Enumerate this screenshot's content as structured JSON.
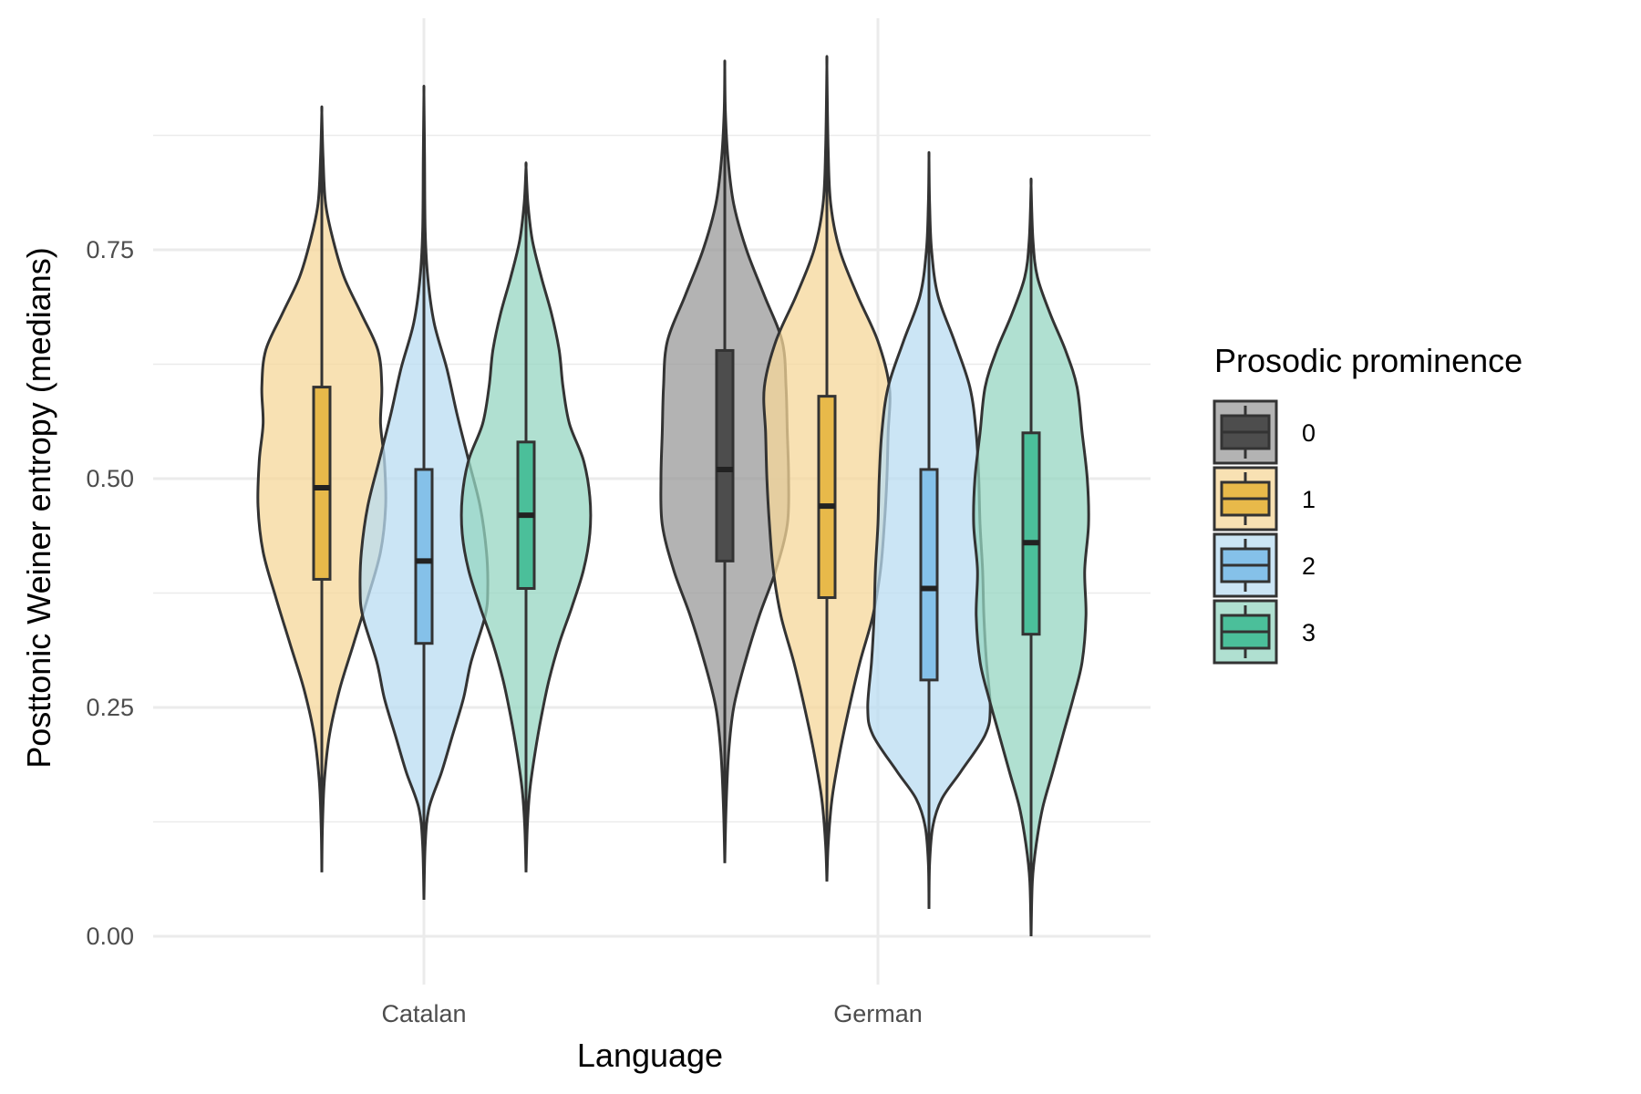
{
  "chart_data": {
    "type": "violin",
    "xlabel": "Language",
    "ylabel": "Posttonic Weiner entropy (medians)",
    "ylim": [
      -0.05,
      1.0
    ],
    "yticks": [
      "0.00",
      "0.25",
      "0.50",
      "0.75"
    ],
    "ytick_values": [
      0,
      0.25,
      0.5,
      0.75
    ],
    "categories": [
      "Catalan",
      "German"
    ],
    "grid": true,
    "legend": {
      "title": "Prosodic prominence",
      "position": "right",
      "entries": [
        {
          "label": "0",
          "fill": "#999999",
          "box": "#4d4d4d"
        },
        {
          "label": "1",
          "fill": "#f5d79a",
          "box": "#e8b94a"
        },
        {
          "label": "2",
          "fill": "#b9dcf2",
          "box": "#85c1e9"
        },
        {
          "label": "3",
          "fill": "#96d6c2",
          "box": "#4bbf9a"
        }
      ]
    },
    "groups": [
      {
        "category": "Catalan",
        "level": "1",
        "min": 0.07,
        "max": 0.9,
        "q1": 0.39,
        "median": 0.49,
        "q3": 0.6,
        "whisker_low": 0.18,
        "whisker_high": 0.79,
        "density": [
          [
            0.07,
            0.0
          ],
          [
            0.12,
            0.01
          ],
          [
            0.17,
            0.04
          ],
          [
            0.22,
            0.12
          ],
          [
            0.27,
            0.28
          ],
          [
            0.32,
            0.5
          ],
          [
            0.37,
            0.72
          ],
          [
            0.42,
            0.92
          ],
          [
            0.47,
            1.0
          ],
          [
            0.52,
            0.98
          ],
          [
            0.56,
            0.92
          ],
          [
            0.6,
            0.94
          ],
          [
            0.64,
            0.88
          ],
          [
            0.68,
            0.62
          ],
          [
            0.72,
            0.35
          ],
          [
            0.76,
            0.18
          ],
          [
            0.8,
            0.06
          ],
          [
            0.85,
            0.02
          ],
          [
            0.9,
            0.0
          ]
        ]
      },
      {
        "category": "Catalan",
        "level": "2",
        "min": 0.04,
        "max": 0.92,
        "q1": 0.32,
        "median": 0.41,
        "q3": 0.51,
        "whisker_low": 0.04,
        "whisker_high": 0.76,
        "density": [
          [
            0.04,
            0.0
          ],
          [
            0.1,
            0.02
          ],
          [
            0.14,
            0.08
          ],
          [
            0.18,
            0.28
          ],
          [
            0.22,
            0.45
          ],
          [
            0.26,
            0.62
          ],
          [
            0.3,
            0.74
          ],
          [
            0.35,
            0.96
          ],
          [
            0.38,
            1.0
          ],
          [
            0.42,
            0.98
          ],
          [
            0.47,
            0.88
          ],
          [
            0.52,
            0.7
          ],
          [
            0.57,
            0.52
          ],
          [
            0.62,
            0.36
          ],
          [
            0.67,
            0.16
          ],
          [
            0.72,
            0.06
          ],
          [
            0.77,
            0.02
          ],
          [
            0.85,
            0.01
          ],
          [
            0.92,
            0.0
          ]
        ]
      },
      {
        "category": "Catalan",
        "level": "3",
        "min": 0.07,
        "max": 0.84,
        "q1": 0.38,
        "median": 0.46,
        "q3": 0.54,
        "whisker_low": 0.17,
        "whisker_high": 0.74,
        "density": [
          [
            0.07,
            0.0
          ],
          [
            0.12,
            0.02
          ],
          [
            0.16,
            0.06
          ],
          [
            0.2,
            0.14
          ],
          [
            0.24,
            0.24
          ],
          [
            0.28,
            0.36
          ],
          [
            0.32,
            0.52
          ],
          [
            0.36,
            0.72
          ],
          [
            0.4,
            0.9
          ],
          [
            0.44,
            1.0
          ],
          [
            0.48,
            1.0
          ],
          [
            0.52,
            0.9
          ],
          [
            0.56,
            0.68
          ],
          [
            0.6,
            0.58
          ],
          [
            0.64,
            0.52
          ],
          [
            0.68,
            0.4
          ],
          [
            0.72,
            0.24
          ],
          [
            0.76,
            0.1
          ],
          [
            0.8,
            0.03
          ],
          [
            0.84,
            0.0
          ]
        ]
      },
      {
        "category": "German",
        "level": "0",
        "min": 0.08,
        "max": 0.95,
        "q1": 0.41,
        "median": 0.51,
        "q3": 0.64,
        "whisker_low": 0.24,
        "whisker_high": 0.79,
        "density": [
          [
            0.08,
            0.0
          ],
          [
            0.14,
            0.02
          ],
          [
            0.2,
            0.06
          ],
          [
            0.25,
            0.14
          ],
          [
            0.3,
            0.32
          ],
          [
            0.35,
            0.54
          ],
          [
            0.4,
            0.8
          ],
          [
            0.45,
            0.98
          ],
          [
            0.5,
            1.0
          ],
          [
            0.55,
            0.98
          ],
          [
            0.6,
            0.96
          ],
          [
            0.65,
            0.9
          ],
          [
            0.7,
            0.62
          ],
          [
            0.75,
            0.34
          ],
          [
            0.8,
            0.14
          ],
          [
            0.85,
            0.05
          ],
          [
            0.9,
            0.01
          ],
          [
            0.95,
            0.0
          ]
        ]
      },
      {
        "category": "German",
        "level": "1",
        "min": 0.06,
        "max": 0.95,
        "q1": 0.37,
        "median": 0.47,
        "q3": 0.59,
        "whisker_low": 0.16,
        "whisker_high": 0.8,
        "density": [
          [
            0.06,
            0.0
          ],
          [
            0.1,
            0.02
          ],
          [
            0.15,
            0.08
          ],
          [
            0.2,
            0.2
          ],
          [
            0.25,
            0.35
          ],
          [
            0.3,
            0.52
          ],
          [
            0.35,
            0.72
          ],
          [
            0.4,
            0.84
          ],
          [
            0.45,
            0.9
          ],
          [
            0.5,
            0.94
          ],
          [
            0.55,
            0.96
          ],
          [
            0.6,
            0.98
          ],
          [
            0.65,
            0.8
          ],
          [
            0.7,
            0.48
          ],
          [
            0.75,
            0.2
          ],
          [
            0.8,
            0.06
          ],
          [
            0.86,
            0.02
          ],
          [
            0.95,
            0.0
          ]
        ]
      },
      {
        "category": "German",
        "level": "2",
        "min": 0.03,
        "max": 0.85,
        "q1": 0.28,
        "median": 0.38,
        "q3": 0.51,
        "whisker_low": 0.03,
        "whisker_high": 0.7,
        "density": [
          [
            0.03,
            0.0
          ],
          [
            0.08,
            0.01
          ],
          [
            0.12,
            0.06
          ],
          [
            0.15,
            0.2
          ],
          [
            0.18,
            0.5
          ],
          [
            0.22,
            0.88
          ],
          [
            0.25,
            0.96
          ],
          [
            0.3,
            0.9
          ],
          [
            0.35,
            0.86
          ],
          [
            0.4,
            0.84
          ],
          [
            0.45,
            0.8
          ],
          [
            0.5,
            0.78
          ],
          [
            0.55,
            0.74
          ],
          [
            0.6,
            0.64
          ],
          [
            0.65,
            0.4
          ],
          [
            0.7,
            0.14
          ],
          [
            0.75,
            0.04
          ],
          [
            0.8,
            0.01
          ],
          [
            0.85,
            0.0
          ]
        ]
      },
      {
        "category": "German",
        "level": "3",
        "min": 0.0,
        "max": 0.82,
        "q1": 0.33,
        "median": 0.43,
        "q3": 0.55,
        "whisker_low": 0.12,
        "whisker_high": 0.7,
        "density": [
          [
            0.0,
            0.0
          ],
          [
            0.06,
            0.02
          ],
          [
            0.1,
            0.08
          ],
          [
            0.14,
            0.18
          ],
          [
            0.18,
            0.34
          ],
          [
            0.22,
            0.5
          ],
          [
            0.26,
            0.66
          ],
          [
            0.3,
            0.8
          ],
          [
            0.35,
            0.86
          ],
          [
            0.4,
            0.84
          ],
          [
            0.45,
            0.9
          ],
          [
            0.5,
            0.88
          ],
          [
            0.55,
            0.8
          ],
          [
            0.6,
            0.72
          ],
          [
            0.64,
            0.54
          ],
          [
            0.68,
            0.3
          ],
          [
            0.72,
            0.1
          ],
          [
            0.76,
            0.03
          ],
          [
            0.82,
            0.0
          ]
        ]
      }
    ]
  }
}
